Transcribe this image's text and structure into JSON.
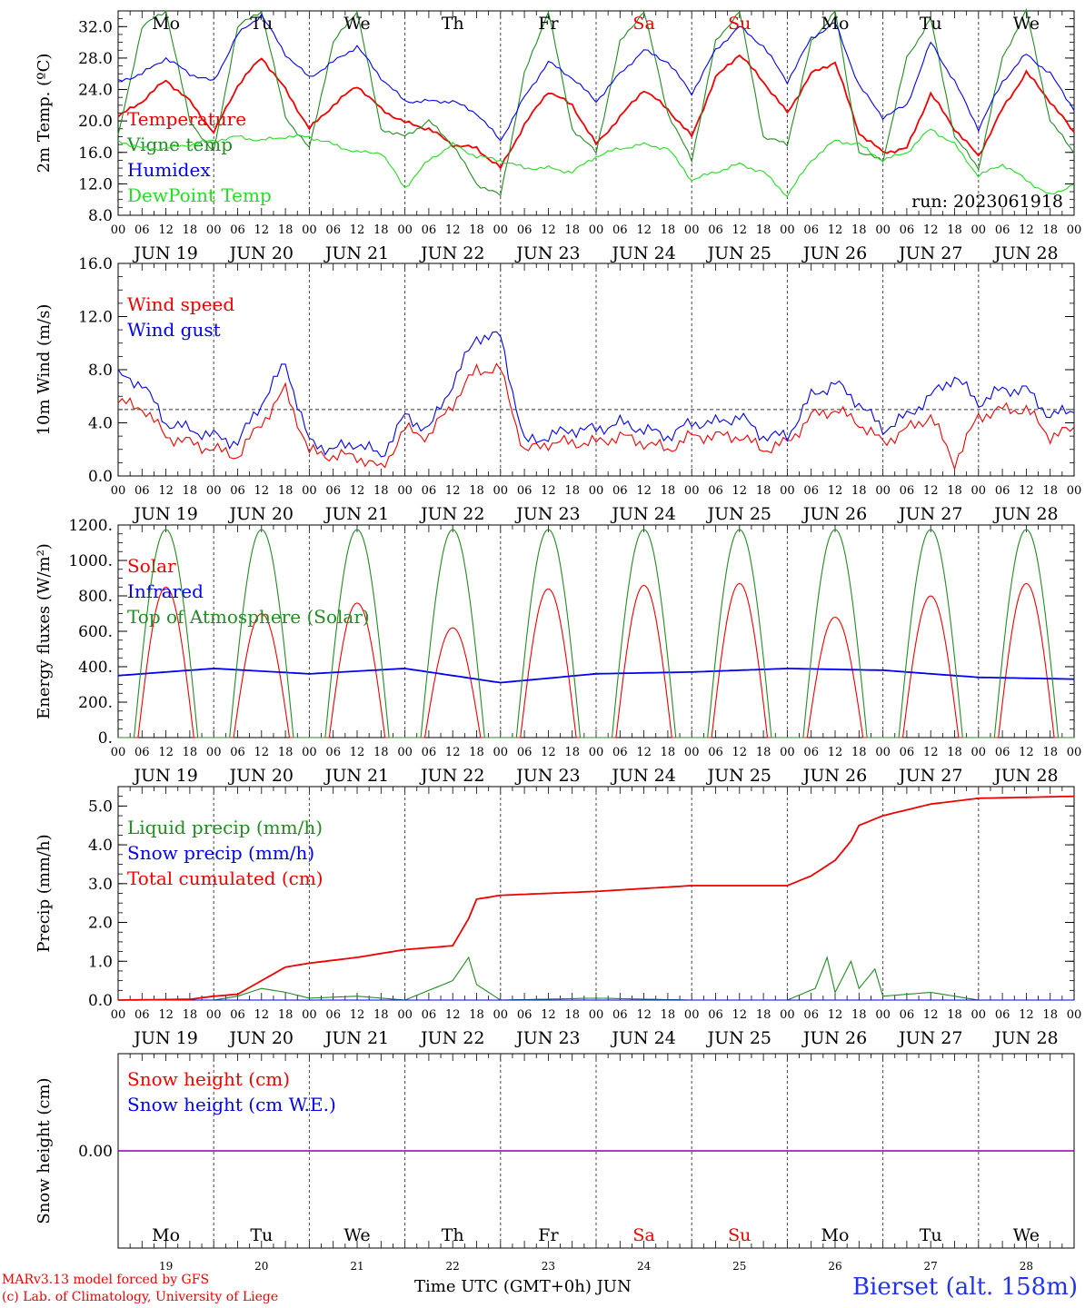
{
  "colors": {
    "red": "#ee0000",
    "green": "#228b22",
    "blue": "#0000ee",
    "lightgreen": "#22dd22",
    "purple": "#8800aa"
  },
  "run_label": "run: 2023061918",
  "x_hours": [
    "00",
    "06",
    "12",
    "18"
  ],
  "x_days": [
    "JUN 19",
    "JUN 20",
    "JUN 21",
    "JUN 22",
    "JUN 23",
    "JUN 24",
    "JUN 25",
    "JUN 26",
    "JUN 27",
    "JUN 28"
  ],
  "weekdays": [
    {
      "label": "Mo",
      "color": "#000000"
    },
    {
      "label": "Tu",
      "color": "#000000"
    },
    {
      "label": "We",
      "color": "#000000"
    },
    {
      "label": "Th",
      "color": "#000000"
    },
    {
      "label": "Fr",
      "color": "#000000"
    },
    {
      "label": "Sa",
      "color": "#ee0000"
    },
    {
      "label": "Su",
      "color": "#ee0000"
    },
    {
      "label": "Mo",
      "color": "#000000"
    },
    {
      "label": "Tu",
      "color": "#000000"
    },
    {
      "label": "We",
      "color": "#000000"
    }
  ],
  "bottom_day_numbers": [
    "19",
    "20",
    "21",
    "22",
    "23",
    "24",
    "25",
    "26",
    "27",
    "28"
  ],
  "footer": {
    "model": "MARv3.13 model forced by GFS",
    "lab": "(c) Lab. of Climatology, University of Liege",
    "axis_label": "Time UTC (GMT+0h) JUN",
    "station": "Bierset (alt. 158m)"
  },
  "chart_data": [
    {
      "id": "temp",
      "type": "line",
      "ylabel": "2m Temp. (ºC)",
      "ylim": [
        8,
        34
      ],
      "yticks": [
        "8.0",
        "12.0",
        "16.0",
        "20.0",
        "24.0",
        "28.0",
        "32.0"
      ],
      "ytick_values": [
        8,
        12,
        16,
        20,
        24,
        28,
        32
      ],
      "series": [
        {
          "name": "Temperature",
          "color": "#ee0000",
          "x_hours": [
            0,
            6,
            12,
            18,
            24,
            30,
            36,
            42,
            48,
            54,
            60,
            66,
            72,
            78,
            84,
            90,
            96,
            102,
            108,
            114,
            120,
            126,
            132,
            138,
            144,
            150,
            156,
            162,
            168,
            174,
            180,
            186,
            192,
            198,
            204,
            210,
            216,
            222,
            228,
            234,
            240
          ],
          "values": [
            20.5,
            22.5,
            25.2,
            22.5,
            18.5,
            24.5,
            28.1,
            24.0,
            19.0,
            22.0,
            24.5,
            21.5,
            19.8,
            19.0,
            17.0,
            16.5,
            14.0,
            19.5,
            23.8,
            22.0,
            17.0,
            20.5,
            24.0,
            21.5,
            18.0,
            25.5,
            28.5,
            25.0,
            21.0,
            26.0,
            27.5,
            18.5,
            16.0,
            16.5,
            23.5,
            19.0,
            15.5,
            21.5,
            26.2,
            22.5,
            18.5
          ]
        },
        {
          "name": "Vigne temp",
          "color": "#228b22",
          "x_hours": [
            0,
            6,
            12,
            18,
            24,
            30,
            36,
            42,
            48,
            54,
            60,
            66,
            72,
            78,
            84,
            90,
            96,
            102,
            108,
            114,
            120,
            126,
            132,
            138,
            144,
            150,
            156,
            162,
            168,
            174,
            180,
            186,
            192,
            198,
            204,
            210,
            216,
            222,
            228,
            234,
            240
          ],
          "values": [
            18.0,
            32.0,
            34.0,
            20.0,
            16.0,
            32.0,
            34.0,
            20.5,
            16.5,
            30.0,
            34.0,
            19.0,
            18.0,
            20.0,
            17.0,
            12.0,
            10.5,
            26.0,
            34.0,
            19.0,
            16.0,
            30.0,
            34.0,
            21.0,
            15.0,
            30.0,
            34.0,
            18.0,
            17.0,
            30.0,
            34.0,
            16.0,
            15.0,
            28.0,
            33.0,
            18.0,
            14.0,
            28.0,
            34.0,
            20.0,
            16.0
          ]
        },
        {
          "name": "Humidex",
          "color": "#0000ee",
          "x_hours": [
            0,
            6,
            12,
            18,
            24,
            30,
            36,
            42,
            48,
            54,
            60,
            66,
            72,
            78,
            84,
            90,
            96,
            102,
            108,
            114,
            120,
            126,
            132,
            138,
            144,
            150,
            156,
            162,
            168,
            174,
            180,
            186,
            192,
            198,
            204,
            210,
            216,
            222,
            228,
            234,
            240
          ],
          "values": [
            25.0,
            26.0,
            28.0,
            26.0,
            25.0,
            31.0,
            33.5,
            28.5,
            25.5,
            27.5,
            29.5,
            25.5,
            22.5,
            22.5,
            22.5,
            21.0,
            17.5,
            23.0,
            27.5,
            25.5,
            22.5,
            26.0,
            29.0,
            27.5,
            23.5,
            29.0,
            32.0,
            29.5,
            25.0,
            30.5,
            32.5,
            24.5,
            20.5,
            22.0,
            30.0,
            25.0,
            19.0,
            25.0,
            28.5,
            26.0,
            21.5
          ]
        },
        {
          "name": "DewPoint Temp",
          "color": "#22dd22",
          "x_hours": [
            0,
            6,
            12,
            18,
            24,
            30,
            36,
            42,
            48,
            54,
            60,
            66,
            72,
            78,
            84,
            90,
            96,
            102,
            108,
            114,
            120,
            126,
            132,
            138,
            144,
            150,
            156,
            162,
            168,
            174,
            180,
            186,
            192,
            198,
            204,
            210,
            216,
            222,
            228,
            234,
            240
          ],
          "values": [
            17.5,
            16.5,
            16.5,
            17.0,
            17.5,
            18.0,
            17.5,
            18.0,
            18.0,
            17.0,
            16.0,
            16.0,
            11.5,
            15.0,
            17.0,
            15.5,
            15.0,
            14.0,
            14.0,
            13.5,
            15.5,
            16.5,
            17.0,
            16.5,
            12.5,
            13.5,
            14.5,
            13.5,
            10.5,
            15.0,
            17.5,
            17.0,
            15.0,
            16.0,
            19.0,
            17.0,
            13.0,
            14.5,
            12.5,
            10.5,
            12.0
          ]
        }
      ]
    },
    {
      "id": "wind",
      "type": "line",
      "ylabel": "10m Wind (m/s)",
      "ylim": [
        0,
        16
      ],
      "yticks": [
        "0.0",
        "4.0",
        "8.0",
        "12.0",
        "16.0"
      ],
      "ytick_values": [
        0,
        4,
        8,
        12,
        16
      ],
      "reference_line": 5,
      "series": [
        {
          "name": "Wind speed",
          "color": "#ee0000",
          "x_hours": [
            0,
            6,
            12,
            18,
            24,
            30,
            36,
            42,
            48,
            54,
            60,
            66,
            72,
            78,
            84,
            90,
            96,
            102,
            108,
            114,
            120,
            126,
            132,
            138,
            144,
            150,
            156,
            162,
            168,
            174,
            180,
            186,
            192,
            198,
            204,
            210,
            216,
            222,
            228,
            234,
            240
          ],
          "values": [
            5.5,
            5.2,
            3.0,
            2.5,
            2.0,
            1.5,
            4.0,
            6.5,
            1.8,
            1.5,
            1.5,
            0.5,
            3.5,
            3.0,
            5.5,
            8.0,
            8.0,
            1.8,
            2.5,
            2.5,
            2.5,
            3.0,
            2.5,
            2.0,
            3.0,
            3.0,
            3.0,
            2.0,
            2.5,
            4.5,
            5.0,
            4.0,
            2.5,
            3.5,
            4.5,
            1.0,
            4.5,
            5.0,
            5.0,
            3.0,
            3.5
          ]
        },
        {
          "name": "Wind gust",
          "color": "#0000ee",
          "x_hours": [
            0,
            6,
            12,
            18,
            24,
            30,
            36,
            42,
            48,
            54,
            60,
            66,
            72,
            78,
            84,
            90,
            96,
            102,
            108,
            114,
            120,
            126,
            132,
            138,
            144,
            150,
            156,
            162,
            168,
            174,
            180,
            186,
            192,
            198,
            204,
            210,
            216,
            222,
            228,
            234,
            240
          ],
          "values": [
            7.5,
            7.0,
            4.0,
            3.5,
            3.0,
            2.5,
            5.5,
            8.5,
            2.5,
            2.0,
            2.5,
            1.5,
            4.5,
            3.5,
            7.0,
            10.5,
            10.5,
            2.5,
            3.0,
            3.5,
            3.5,
            4.0,
            3.5,
            3.0,
            4.0,
            4.0,
            4.5,
            3.0,
            3.0,
            6.0,
            7.0,
            5.5,
            3.5,
            4.5,
            6.0,
            7.5,
            5.5,
            6.5,
            6.5,
            4.5,
            5.0
          ]
        }
      ]
    },
    {
      "id": "energy",
      "type": "line",
      "ylabel": "Energy fluxes (W/m²)",
      "ylim": [
        0,
        1200
      ],
      "yticks": [
        "0.",
        "200.",
        "400.",
        "600.",
        "800.",
        "1000.",
        "1200."
      ],
      "ytick_values": [
        0,
        200,
        400,
        600,
        800,
        1000,
        1200
      ],
      "series": [
        {
          "name": "Solar",
          "color": "#ee0000",
          "peak_hour": 12,
          "daily_peaks": [
            850,
            700,
            760,
            620,
            840,
            860,
            870,
            680,
            800,
            870
          ]
        },
        {
          "name": "Infrared",
          "color": "#0000ee",
          "x_hours": [
            0,
            24,
            48,
            72,
            96,
            120,
            144,
            168,
            192,
            216,
            240
          ],
          "values": [
            350,
            390,
            360,
            390,
            310,
            360,
            370,
            390,
            380,
            340,
            330
          ]
        },
        {
          "name": "Top of Atmosphere (Solar)",
          "color": "#228b22",
          "peak_hour": 12,
          "daily_peaks": [
            1175,
            1175,
            1175,
            1175,
            1175,
            1175,
            1175,
            1175,
            1175,
            1175
          ]
        }
      ]
    },
    {
      "id": "precip",
      "type": "line",
      "ylabel": "Precip (mm/h)",
      "ylim": [
        0,
        5.5
      ],
      "yticks": [
        "0.0",
        "1.0",
        "2.0",
        "3.0",
        "4.0",
        "5.0"
      ],
      "ytick_values": [
        0,
        1,
        2,
        3,
        4,
        5
      ],
      "series": [
        {
          "name": "Liquid precip (mm/h)",
          "color": "#228b22",
          "x_hours": [
            0,
            24,
            30,
            36,
            42,
            48,
            60,
            72,
            84,
            88,
            90,
            96,
            120,
            144,
            168,
            175,
            178,
            180,
            184,
            186,
            190,
            192,
            204,
            216,
            240
          ],
          "values": [
            0,
            0,
            0.1,
            0.3,
            0.2,
            0.05,
            0.1,
            0,
            0.5,
            1.1,
            0.4,
            0,
            0.05,
            0,
            0,
            0.3,
            1.1,
            0.2,
            1.0,
            0.3,
            0.8,
            0.1,
            0.2,
            0,
            0
          ]
        },
        {
          "name": "Snow precip (mm/h)",
          "color": "#0000ee",
          "x_hours": [
            0,
            240
          ],
          "values": [
            0,
            0
          ]
        },
        {
          "name": "Total cumulated (cm)",
          "color": "#ee0000",
          "x_hours": [
            0,
            18,
            24,
            30,
            36,
            42,
            48,
            60,
            72,
            84,
            88,
            90,
            96,
            120,
            144,
            168,
            174,
            180,
            184,
            186,
            192,
            204,
            216,
            240
          ],
          "values": [
            0,
            0.02,
            0.1,
            0.15,
            0.5,
            0.85,
            0.95,
            1.1,
            1.3,
            1.4,
            2.1,
            2.6,
            2.7,
            2.8,
            2.95,
            2.95,
            3.2,
            3.6,
            4.1,
            4.5,
            4.75,
            5.05,
            5.2,
            5.25
          ]
        }
      ]
    },
    {
      "id": "snow",
      "type": "line",
      "ylabel": "Snow height (cm)",
      "ylim": [
        -1,
        1
      ],
      "yticks": [
        "0.00"
      ],
      "ytick_values": [
        0
      ],
      "series": [
        {
          "name": "Snow height (cm)",
          "color": "#ee0000",
          "x_hours": [
            0,
            240
          ],
          "values": [
            0,
            0
          ]
        },
        {
          "name": "Snow height (cm W.E.)",
          "color": "#0000ee",
          "x_hours": [
            0,
            240
          ],
          "values": [
            0,
            0
          ]
        }
      ]
    }
  ]
}
